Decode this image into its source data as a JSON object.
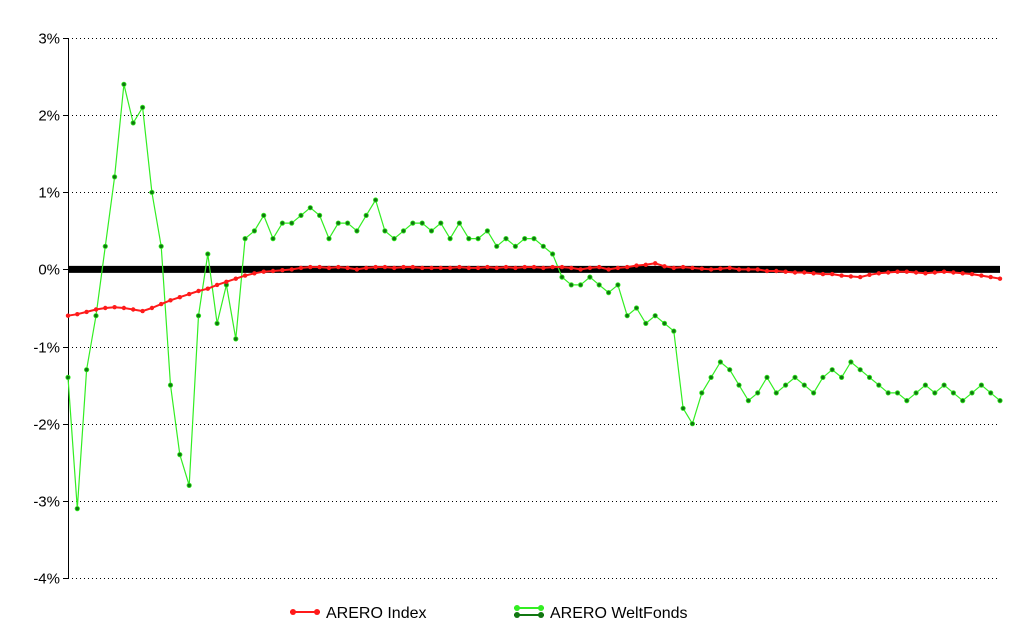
{
  "chart_data": {
    "type": "line",
    "title": "",
    "xlabel": "",
    "ylabel": "",
    "y_unit": "%",
    "ylim": [
      -4,
      3
    ],
    "y_ticks": [
      {
        "value": 3,
        "label": "3%"
      },
      {
        "value": 2,
        "label": "2%"
      },
      {
        "value": 1,
        "label": "1%"
      },
      {
        "value": 0,
        "label": "0%"
      },
      {
        "value": -1,
        "label": "-1%"
      },
      {
        "value": -2,
        "label": "-2%"
      },
      {
        "value": -3,
        "label": "-3%"
      },
      {
        "value": -4,
        "label": "-4%"
      }
    ],
    "grid": "horizontal dotted",
    "zero_line": "thick black",
    "legend_position": "bottom",
    "x_index_count": 101,
    "series": [
      {
        "name": "ARERO Index",
        "color": "#ff1a1a",
        "values": [
          -0.6,
          -0.58,
          -0.55,
          -0.52,
          -0.5,
          -0.49,
          -0.5,
          -0.52,
          -0.54,
          -0.5,
          -0.45,
          -0.4,
          -0.36,
          -0.32,
          -0.28,
          -0.25,
          -0.2,
          -0.16,
          -0.12,
          -0.08,
          -0.05,
          -0.03,
          -0.02,
          -0.01,
          0.0,
          0.02,
          0.03,
          0.03,
          0.02,
          0.03,
          0.02,
          0.0,
          0.02,
          0.03,
          0.03,
          0.02,
          0.03,
          0.03,
          0.02,
          0.02,
          0.02,
          0.02,
          0.03,
          0.02,
          0.02,
          0.03,
          0.02,
          0.03,
          0.02,
          0.03,
          0.03,
          0.02,
          0.03,
          0.03,
          0.02,
          0.0,
          0.02,
          0.03,
          0.0,
          0.02,
          0.03,
          0.05,
          0.06,
          0.08,
          0.04,
          0.02,
          0.03,
          0.02,
          0.01,
          0.0,
          0.01,
          0.02,
          0.0,
          0.0,
          0.0,
          -0.02,
          -0.02,
          -0.03,
          -0.04,
          -0.04,
          -0.05,
          -0.06,
          -0.06,
          -0.08,
          -0.09,
          -0.1,
          -0.07,
          -0.05,
          -0.04,
          -0.03,
          -0.03,
          -0.04,
          -0.05,
          -0.04,
          -0.03,
          -0.04,
          -0.05,
          -0.06,
          -0.08,
          -0.1,
          -0.12
        ]
      },
      {
        "name": "ARERO WeltFonds",
        "color": "#33ee22",
        "color_secondary": "#117711",
        "values": [
          -1.4,
          -3.1,
          -1.3,
          -0.6,
          0.3,
          1.2,
          2.4,
          1.9,
          2.1,
          1.0,
          0.3,
          -1.5,
          -2.4,
          -2.8,
          -0.6,
          0.2,
          -0.7,
          -0.2,
          -0.9,
          0.4,
          0.5,
          0.7,
          0.4,
          0.6,
          0.6,
          0.7,
          0.8,
          0.7,
          0.4,
          0.6,
          0.6,
          0.5,
          0.7,
          0.9,
          0.5,
          0.4,
          0.5,
          0.6,
          0.6,
          0.5,
          0.6,
          0.4,
          0.6,
          0.4,
          0.4,
          0.5,
          0.3,
          0.4,
          0.3,
          0.4,
          0.4,
          0.3,
          0.2,
          -0.1,
          -0.2,
          -0.2,
          -0.1,
          -0.2,
          -0.3,
          -0.2,
          -0.6,
          -0.5,
          -0.7,
          -0.6,
          -0.7,
          -0.8,
          -1.8,
          -2.0,
          -1.6,
          -1.4,
          -1.2,
          -1.3,
          -1.5,
          -1.7,
          -1.6,
          -1.4,
          -1.6,
          -1.5,
          -1.4,
          -1.5,
          -1.6,
          -1.4,
          -1.3,
          -1.4,
          -1.2,
          -1.3,
          -1.4,
          -1.5,
          -1.6,
          -1.6,
          -1.7,
          -1.6,
          -1.5,
          -1.6,
          -1.5,
          -1.6,
          -1.7,
          -1.6,
          -1.5,
          -1.6,
          -1.7
        ]
      }
    ]
  }
}
